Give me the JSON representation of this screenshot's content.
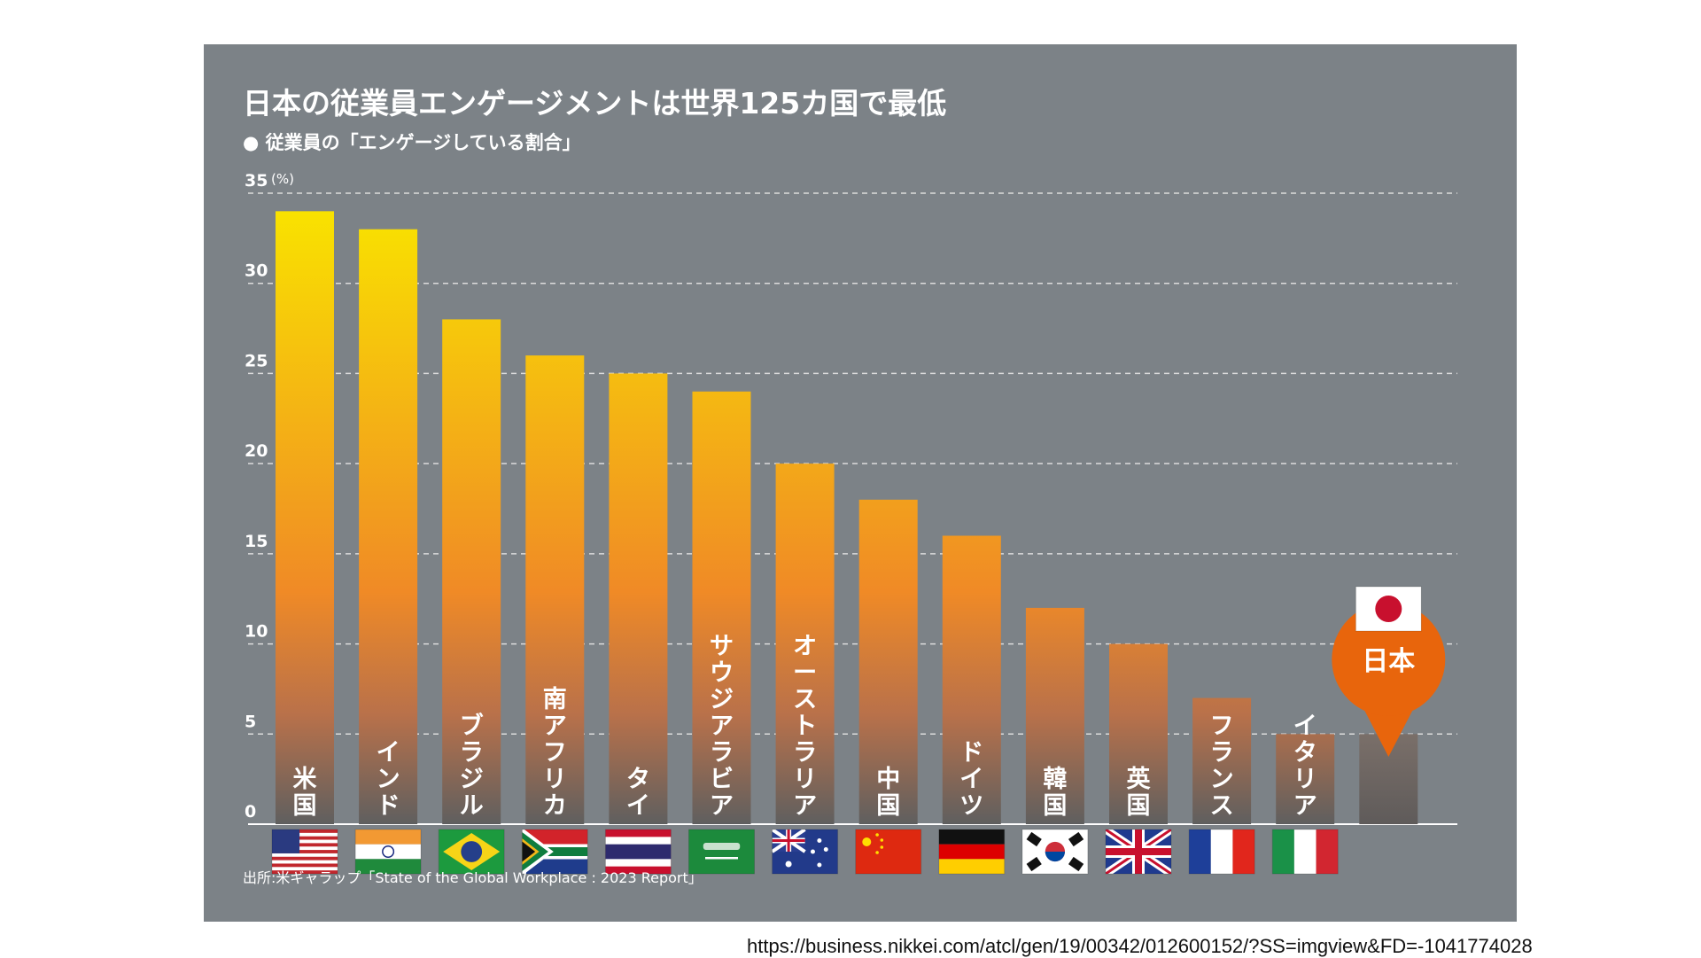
{
  "chart_data": {
    "type": "bar",
    "title": "日本の従業員エンゲージメントは世界125カ国で最低",
    "subtitle": "● 従業員の「エンゲージしている割合」",
    "ylabel_unit": "(%)",
    "ylim": [
      0,
      35
    ],
    "yticks": [
      0,
      5,
      10,
      15,
      20,
      25,
      30,
      35
    ],
    "grid": true,
    "categories": [
      "米国",
      "インド",
      "ブラジル",
      "南アフリカ",
      "タイ",
      "サウジアラビア",
      "オーストラリア",
      "中国",
      "ドイツ",
      "韓国",
      "英国",
      "フランス",
      "イタリア",
      "日本"
    ],
    "values": [
      34,
      33,
      28,
      26,
      25,
      24,
      20,
      18,
      16,
      12,
      10,
      7,
      5,
      5
    ],
    "highlight": {
      "category": "日本",
      "label": "日本",
      "color": "#e8650c"
    },
    "colors": {
      "bar_top": "#f9e200",
      "bar_mid": "#f08a26",
      "bar_bottom": "#5f5f5f",
      "japan_bar": "#6a6665",
      "panel": "#7c8287"
    },
    "flags": [
      "us-flag-icon",
      "india-flag-icon",
      "brazil-flag-icon",
      "south-africa-flag-icon",
      "thailand-flag-icon",
      "saudi-arabia-flag-icon",
      "australia-flag-icon",
      "china-flag-icon",
      "germany-flag-icon",
      "korea-flag-icon",
      "uk-flag-icon",
      "france-flag-icon",
      "italy-flag-icon",
      "japan-flag-icon"
    ],
    "source": "出所:米ギャラップ「State of the Global Workplace : 2023 Report」"
  },
  "page": {
    "url_caption": "https://business.nikkei.com/atcl/gen/19/00342/012600152/?SS=imgview&FD=-1041774028"
  }
}
